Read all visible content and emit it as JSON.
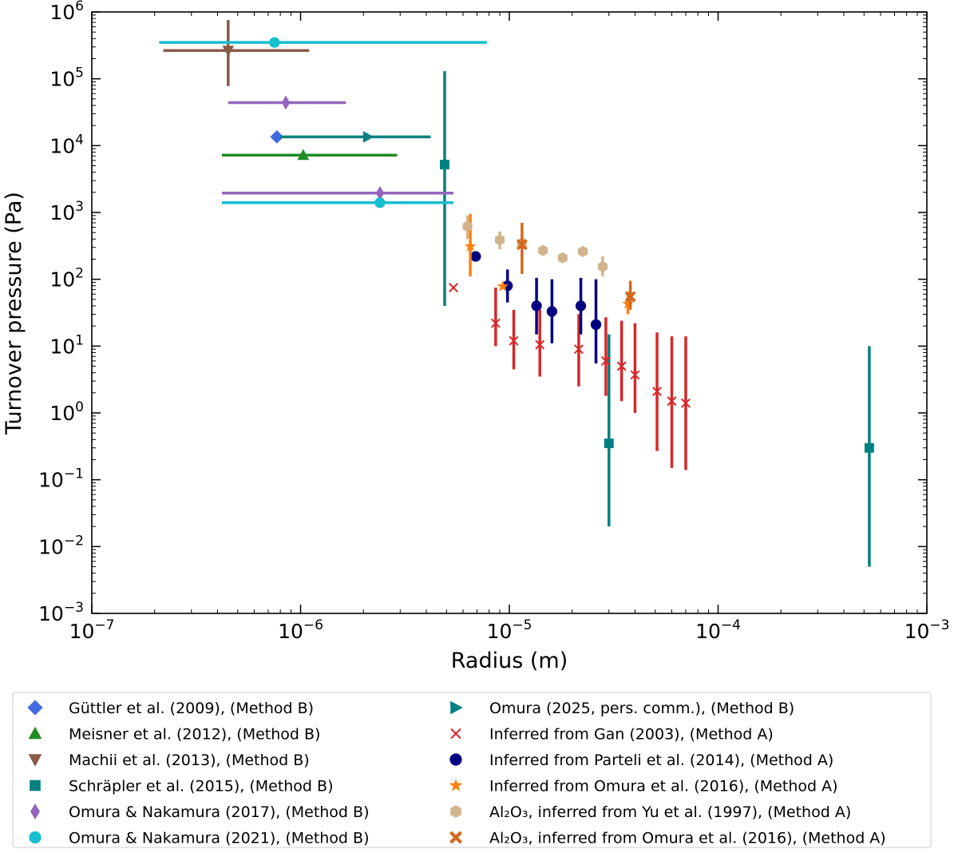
{
  "chart_data": {
    "type": "scatter",
    "title": "",
    "xlabel": "Radius (m)",
    "ylabel": "Turnover pressure (Pa)",
    "xscale": "log",
    "yscale": "log",
    "xlim": [
      1e-07,
      0.001
    ],
    "ylim": [
      0.001,
      1000000.0
    ],
    "x_ticks": [
      {
        "value": 1e-07,
        "base": "10",
        "exp": "−7"
      },
      {
        "value": 1e-06,
        "base": "10",
        "exp": "−6"
      },
      {
        "value": 1e-05,
        "base": "10",
        "exp": "−5"
      },
      {
        "value": 0.0001,
        "base": "10",
        "exp": "−4"
      },
      {
        "value": 0.001,
        "base": "10",
        "exp": "−3"
      }
    ],
    "y_ticks": [
      {
        "value": 0.001,
        "base": "10",
        "exp": "−3"
      },
      {
        "value": 0.01,
        "base": "10",
        "exp": "−2"
      },
      {
        "value": 0.1,
        "base": "10",
        "exp": "−1"
      },
      {
        "value": 1.0,
        "base": "10",
        "exp": "0"
      },
      {
        "value": 10.0,
        "base": "10",
        "exp": "1"
      },
      {
        "value": 100.0,
        "base": "10",
        "exp": "2"
      },
      {
        "value": 1000.0,
        "base": "10",
        "exp": "3"
      },
      {
        "value": 10000.0,
        "base": "10",
        "exp": "4"
      },
      {
        "value": 100000.0,
        "base": "10",
        "exp": "5"
      },
      {
        "value": 1000000.0,
        "base": "10",
        "exp": "6"
      }
    ],
    "grid": false,
    "legend_position": "below",
    "series": [
      {
        "id": "guttler",
        "name": "Güttler et al. (2009), (Method B)",
        "color": "#4169e1",
        "marker": "diamond",
        "points": [
          {
            "x": 7.7e-07,
            "y": 13500
          }
        ]
      },
      {
        "id": "meisner",
        "name": "Meisner et al. (2012), (Method B)",
        "color": "#228b22",
        "marker": "triangle-up",
        "points": [
          {
            "x": 1.03e-06,
            "y": 7200,
            "xerr": [
              4.2e-07,
              2.9e-06
            ]
          }
        ]
      },
      {
        "id": "machii",
        "name": "Machii et al. (2013), (Method B)",
        "color": "#8b5a4a",
        "marker": "triangle-down",
        "points": [
          {
            "x": 4.5e-07,
            "y": 265000,
            "xerr": [
              2.2e-07,
              1.1e-06
            ],
            "yerr": [
              78000,
              760000
            ]
          }
        ]
      },
      {
        "id": "schrapler",
        "name": "Schräpler et al. (2015), (Method B)",
        "color": "#008080",
        "marker": "square",
        "points": [
          {
            "x": 4.9e-06,
            "y": 5200,
            "yerr": [
              40,
              130000
            ]
          },
          {
            "x": 3e-05,
            "y": 0.35,
            "yerr": [
              0.02,
              15
            ]
          },
          {
            "x": 0.00053,
            "y": 0.3,
            "yerr": [
              0.005,
              10
            ]
          }
        ]
      },
      {
        "id": "omura2017",
        "name": "Omura & Nakamura (2017), (Method B)",
        "color": "#9467bd",
        "marker": "thin-diamond",
        "points": [
          {
            "x": 8.5e-07,
            "y": 44000,
            "xerr": [
              4.5e-07,
              1.65e-06
            ]
          },
          {
            "x": 2.4e-06,
            "y": 1950,
            "xerr": [
              4.2e-07,
              5.4e-06
            ]
          }
        ]
      },
      {
        "id": "omura2021",
        "name": "Omura & Nakamura (2021), (Method B)",
        "color": "#17becf",
        "marker": "circle",
        "points": [
          {
            "x": 7.5e-07,
            "y": 350000,
            "xerr": [
              2.1e-07,
              7.8e-06
            ]
          },
          {
            "x": 2.4e-06,
            "y": 1400,
            "xerr": [
              4.2e-07,
              5.4e-06
            ]
          }
        ]
      },
      {
        "id": "omura2025",
        "name": "Omura (2025, pers. comm.), (Method B)",
        "color": "#008080",
        "marker": "triangle-right",
        "points": [
          {
            "x": 2.1e-06,
            "y": 13500,
            "xerr": [
              8e-07,
              4.2e-06
            ]
          }
        ]
      },
      {
        "id": "gan",
        "name": "Inferred from Gan (2003), (Method A)",
        "color": "#d62728",
        "marker": "x",
        "points": [
          {
            "x": 5.4e-06,
            "y": 75
          },
          {
            "x": 8.6e-06,
            "y": 22,
            "yerr": [
              10,
              75
            ]
          },
          {
            "x": 1.05e-05,
            "y": 12,
            "yerr": [
              4.5,
              35
            ]
          },
          {
            "x": 1.4e-05,
            "y": 10.5,
            "yerr": [
              3.5,
              35
            ]
          },
          {
            "x": 2.15e-05,
            "y": 9,
            "yerr": [
              2.5,
              30
            ]
          },
          {
            "x": 2.9e-05,
            "y": 6,
            "yerr": [
              1.8,
              27
            ]
          },
          {
            "x": 3.45e-05,
            "y": 5,
            "yerr": [
              1.5,
              24
            ]
          },
          {
            "x": 4e-05,
            "y": 3.7,
            "yerr": [
              1.0,
              22
            ]
          },
          {
            "x": 5.1e-05,
            "y": 2.1,
            "yerr": [
              0.27,
              16
            ]
          },
          {
            "x": 6e-05,
            "y": 1.5,
            "yerr": [
              0.15,
              14
            ]
          },
          {
            "x": 7e-05,
            "y": 1.4,
            "yerr": [
              0.14,
              14
            ]
          }
        ]
      },
      {
        "id": "parteli",
        "name": "Inferred from Parteli et al. (2014), (Method A)",
        "color": "#000080",
        "marker": "circle",
        "points": [
          {
            "x": 6.9e-06,
            "y": 220
          },
          {
            "x": 9.8e-06,
            "y": 80,
            "yerr": [
              45,
              140
            ]
          },
          {
            "x": 1.35e-05,
            "y": 40,
            "yerr": [
              15,
              105
            ]
          },
          {
            "x": 1.6e-05,
            "y": 33,
            "yerr": [
              11,
              100
            ]
          },
          {
            "x": 2.2e-05,
            "y": 40,
            "yerr": [
              15,
              105
            ]
          },
          {
            "x": 2.6e-05,
            "y": 21,
            "yerr": [
              5.5,
              100
            ]
          }
        ]
      },
      {
        "id": "omura2016",
        "name": "Inferred from Omura et al. (2016), (Method A)",
        "color": "#ff7f0e",
        "marker": "star",
        "points": [
          {
            "x": 6.5e-06,
            "y": 310,
            "yerr": [
              110,
              950
            ]
          },
          {
            "x": 9.3e-06,
            "y": 78
          },
          {
            "x": 3.7e-05,
            "y": 43,
            "yerr": [
              30,
              65
            ]
          }
        ]
      },
      {
        "id": "yu",
        "name": "Al₂O₃, inferred from Yu et al. (1997), (Method A)",
        "color": "#d2b48c",
        "marker": "hexagon",
        "points": [
          {
            "x": 6.3e-06,
            "y": 620,
            "yerr": [
              400,
              900
            ]
          },
          {
            "x": 9e-06,
            "y": 390,
            "yerr": [
              280,
              520
            ]
          },
          {
            "x": 1.15e-05,
            "y": 350,
            "yerr": [
              260,
              470
            ]
          },
          {
            "x": 1.45e-05,
            "y": 270
          },
          {
            "x": 1.8e-05,
            "y": 210
          },
          {
            "x": 2.25e-05,
            "y": 260
          },
          {
            "x": 2.8e-05,
            "y": 155,
            "yerr": [
              110,
              220
            ]
          }
        ]
      },
      {
        "id": "omura2016al",
        "name": "Al₂O₃, inferred from Omura et al. (2016), (Method A)",
        "color": "#d2691e",
        "marker": "x-filled",
        "points": [
          {
            "x": 1.15e-05,
            "y": 330,
            "yerr": [
              120,
              700
            ]
          },
          {
            "x": 3.8e-05,
            "y": 55,
            "yerr": [
              35,
              95
            ]
          }
        ]
      }
    ]
  }
}
